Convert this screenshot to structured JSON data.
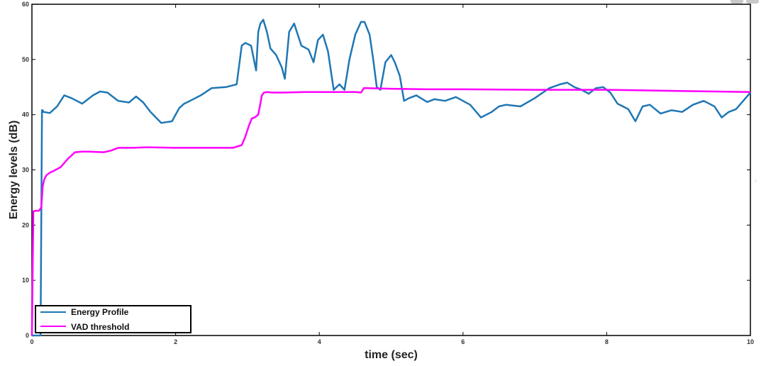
{
  "colors": {
    "energy": "#1f77b4",
    "vad": "#ff00ff",
    "axis": "#000000",
    "background": "#ffffff"
  },
  "chart_data": {
    "type": "line",
    "title": "",
    "xlabel": "time (sec)",
    "ylabel": "Energy levels (dB)",
    "xlim": [
      0,
      10
    ],
    "ylim": [
      0,
      60
    ],
    "xticks": [
      0,
      2,
      4,
      6,
      8,
      10
    ],
    "yticks": [
      0,
      10,
      20,
      30,
      40,
      50,
      60
    ],
    "legend_position": "bottom-left",
    "grid": false,
    "series": [
      {
        "name": "Energy Profile",
        "color": "#1f77b4",
        "x": [
          0,
          0.12,
          0.14,
          0.15,
          0.16,
          0.25,
          0.35,
          0.45,
          0.55,
          0.7,
          0.85,
          0.95,
          1.05,
          1.2,
          1.35,
          1.45,
          1.55,
          1.65,
          1.8,
          1.95,
          2.05,
          2.12,
          2.2,
          2.35,
          2.5,
          2.7,
          2.85,
          2.92,
          2.97,
          3.05,
          3.12,
          3.15,
          3.18,
          3.22,
          3.27,
          3.32,
          3.4,
          3.48,
          3.52,
          3.58,
          3.65,
          3.75,
          3.85,
          3.92,
          3.98,
          4.05,
          4.12,
          4.2,
          4.28,
          4.35,
          4.42,
          4.5,
          4.58,
          4.63,
          4.7,
          4.75,
          4.8,
          4.85,
          4.92,
          5.0,
          5.05,
          5.12,
          5.18,
          5.25,
          5.35,
          5.5,
          5.6,
          5.75,
          5.9,
          6.1,
          6.25,
          6.4,
          6.5,
          6.6,
          6.8,
          7.0,
          7.2,
          7.35,
          7.45,
          7.55,
          7.65,
          7.75,
          7.85,
          7.95,
          8.05,
          8.15,
          8.3,
          8.4,
          8.5,
          8.6,
          8.75,
          8.9,
          9.05,
          9.2,
          9.35,
          9.5,
          9.6,
          9.7,
          9.8,
          9.9,
          10.0
        ],
        "y": [
          0,
          0,
          40.8,
          40.8,
          40.5,
          40.3,
          41.5,
          43.5,
          43.0,
          42.0,
          43.5,
          44.2,
          44.0,
          42.5,
          42.2,
          43.3,
          42.2,
          40.5,
          38.5,
          38.8,
          41.2,
          42.0,
          42.5,
          43.5,
          44.8,
          45.0,
          45.5,
          52.5,
          53.0,
          52.5,
          48.0,
          55.0,
          56.5,
          57.2,
          55.0,
          52.0,
          50.8,
          48.5,
          46.5,
          55.0,
          56.5,
          52.5,
          51.8,
          49.5,
          53.5,
          54.5,
          51.5,
          44.5,
          45.5,
          44.5,
          50.0,
          54.5,
          56.8,
          56.8,
          54.5,
          50.0,
          45.0,
          44.5,
          49.5,
          50.8,
          49.5,
          47.0,
          42.5,
          43.0,
          43.5,
          42.3,
          42.8,
          42.5,
          43.2,
          41.8,
          39.5,
          40.5,
          41.5,
          41.8,
          41.5,
          43.0,
          44.8,
          45.5,
          45.8,
          45.0,
          44.5,
          43.8,
          44.8,
          45.0,
          44.0,
          42.0,
          41.0,
          38.8,
          41.5,
          41.8,
          40.2,
          40.8,
          40.5,
          41.8,
          42.5,
          41.5,
          39.5,
          40.5,
          41.0,
          42.5,
          44.0
        ]
      },
      {
        "name": "VAD threshold",
        "color": "#ff00ff",
        "x": [
          0,
          0.02,
          0.05,
          0.08,
          0.1,
          0.13,
          0.15,
          0.17,
          0.2,
          0.25,
          0.3,
          0.4,
          0.5,
          0.6,
          0.7,
          0.8,
          1.0,
          1.1,
          1.2,
          1.4,
          1.6,
          2.0,
          2.4,
          2.8,
          2.92,
          2.97,
          3.02,
          3.06,
          3.1,
          3.15,
          3.18,
          3.2,
          3.23,
          3.27,
          3.35,
          3.5,
          3.8,
          4.0,
          4.2,
          4.5,
          4.58,
          4.62,
          4.65,
          5.0,
          5.5,
          6.0,
          7.0,
          8.0,
          8.5,
          9.0,
          9.5,
          10.0
        ],
        "y": [
          0,
          22.5,
          22.6,
          22.6,
          22.6,
          23.2,
          27.0,
          28.2,
          29.0,
          29.5,
          29.8,
          30.5,
          32.0,
          33.2,
          33.3,
          33.3,
          33.2,
          33.5,
          34.0,
          34.0,
          34.1,
          34.0,
          34.0,
          34.0,
          34.5,
          36.0,
          38.0,
          39.3,
          39.5,
          40.0,
          42.0,
          43.5,
          44.0,
          44.1,
          44.0,
          44.0,
          44.1,
          44.1,
          44.1,
          44.1,
          44.0,
          44.8,
          44.8,
          44.7,
          44.6,
          44.6,
          44.5,
          44.5,
          44.4,
          44.3,
          44.2,
          44.1
        ]
      }
    ]
  }
}
